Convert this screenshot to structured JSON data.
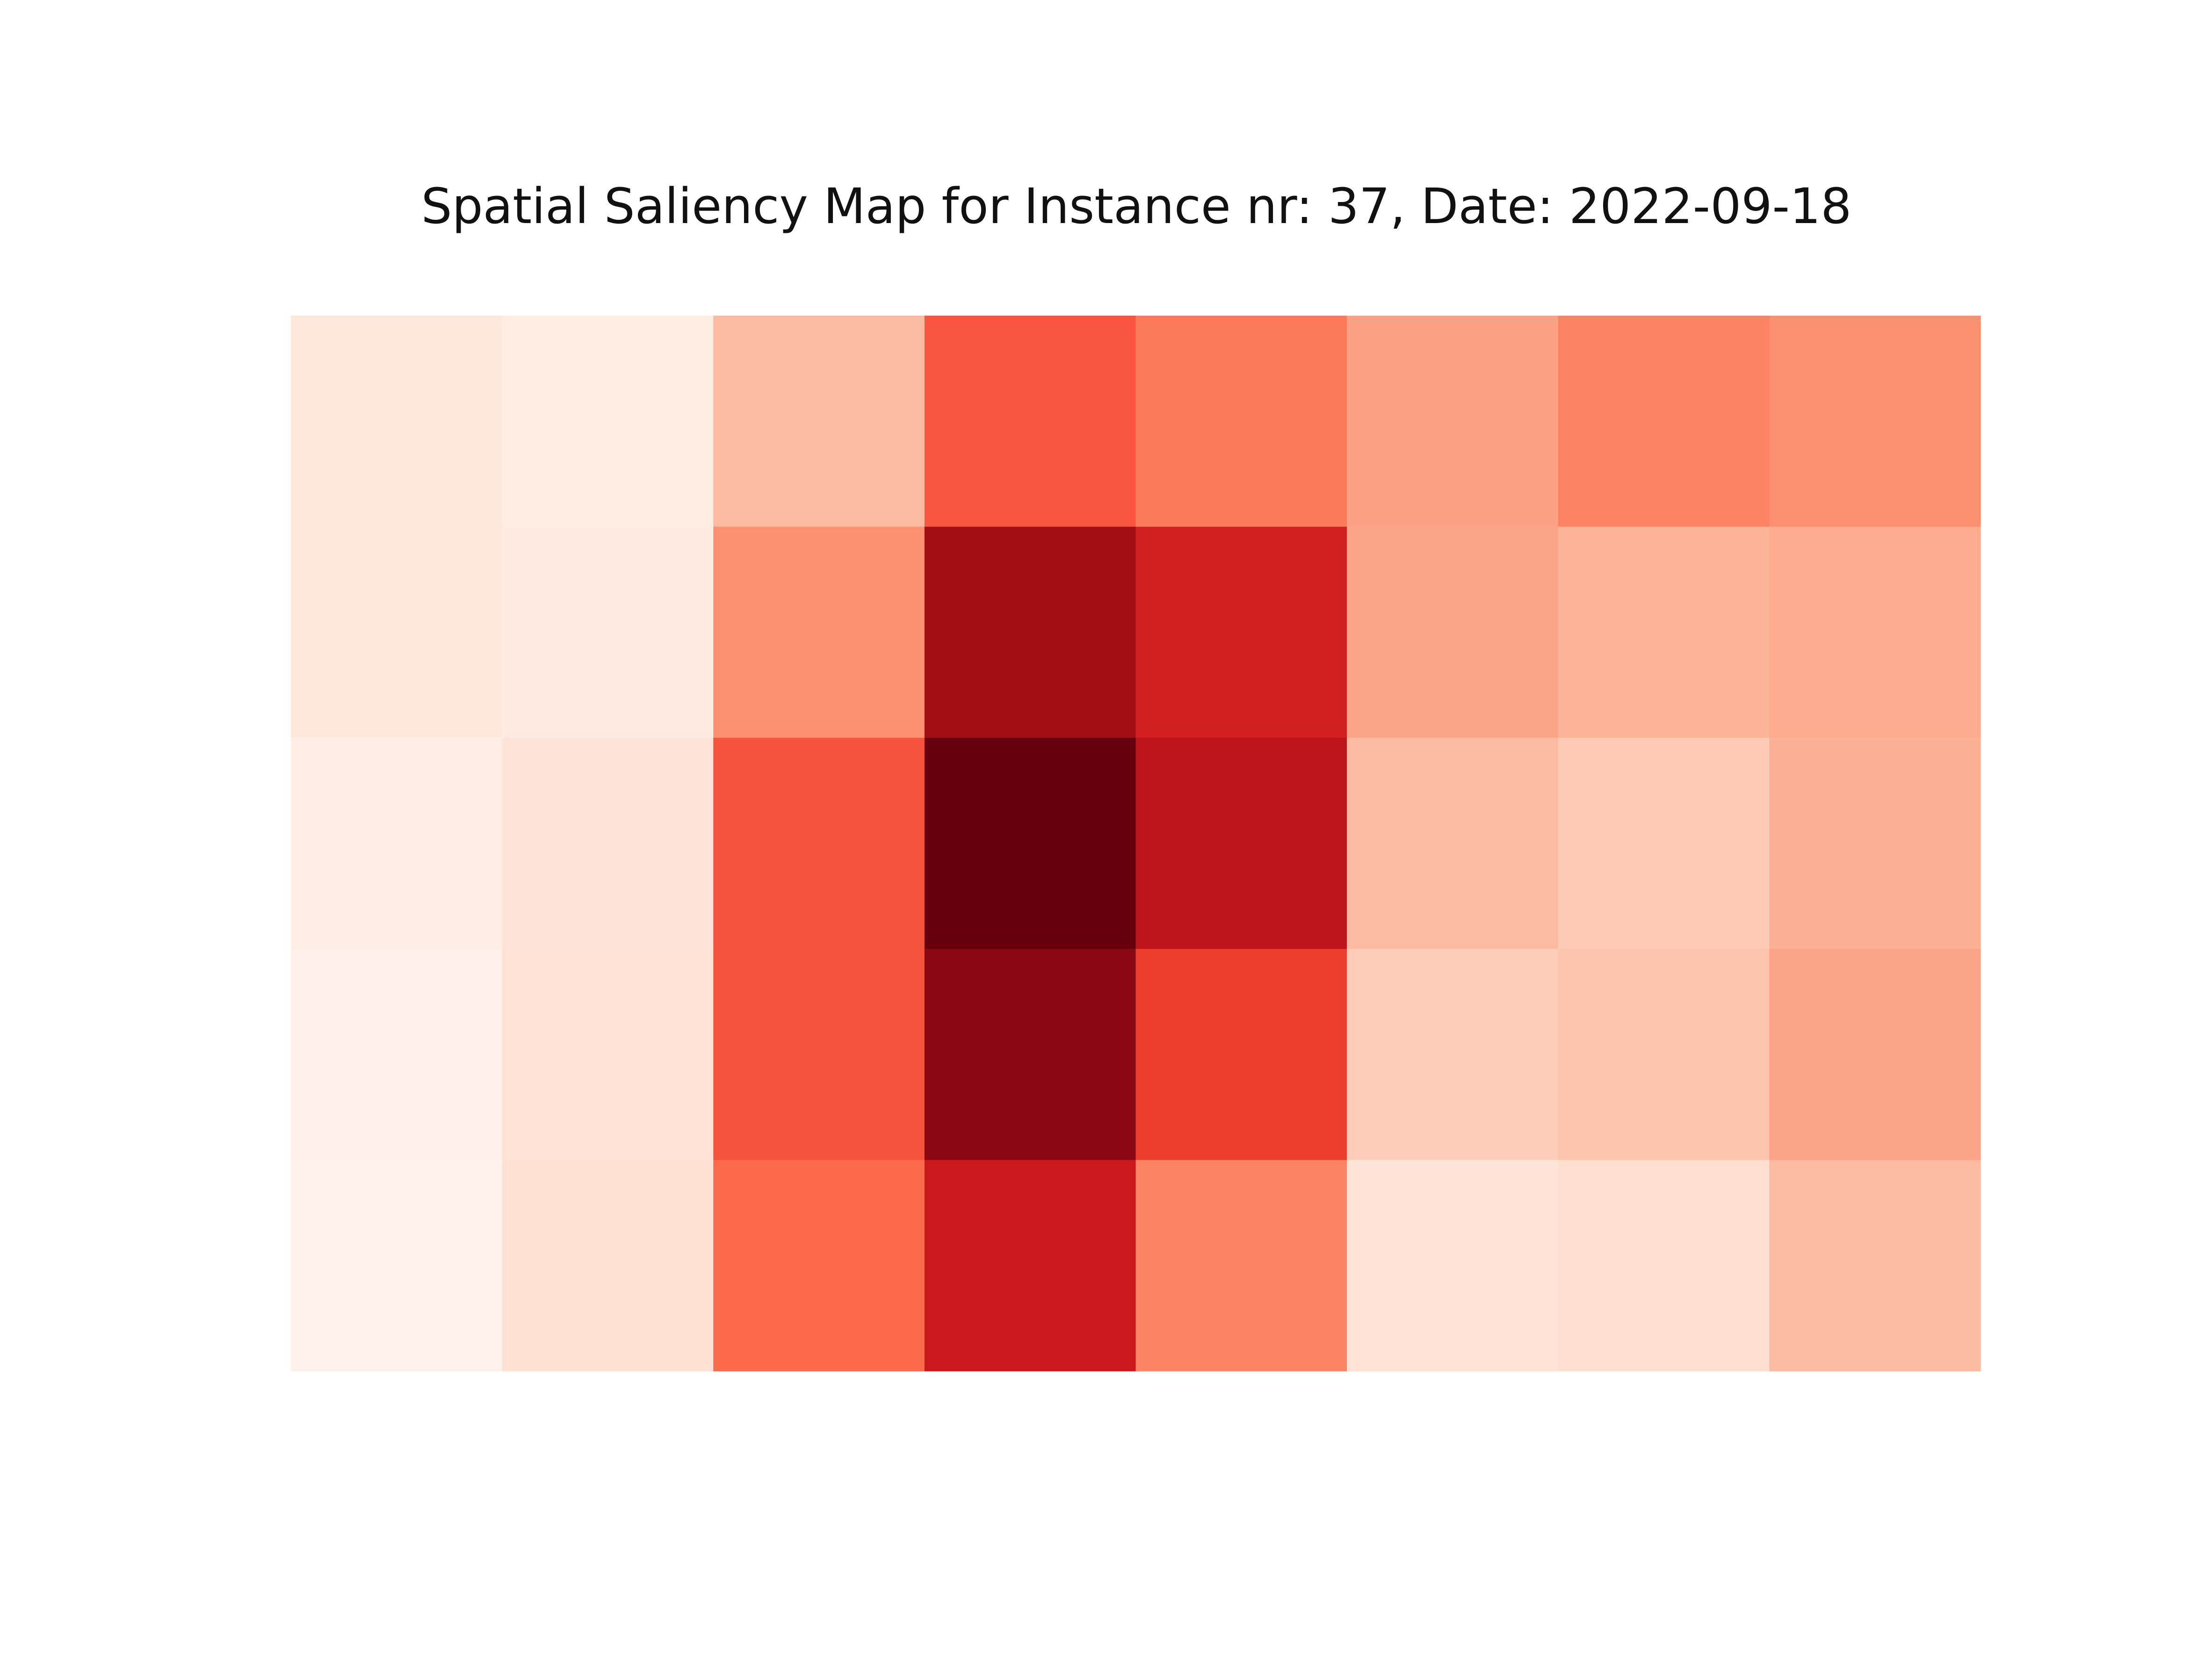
{
  "chart_data": {
    "type": "heatmap",
    "title": "Spatial Saliency Map for Instance nr: 37, Date: 2022-09-18",
    "colormap": "Reds",
    "rows": 5,
    "cols": 8,
    "axes_visible": false,
    "grid": false,
    "values": [
      [
        0.08,
        0.05,
        0.25,
        0.55,
        0.45,
        0.33,
        0.42,
        0.38
      ],
      [
        0.08,
        0.06,
        0.38,
        0.88,
        0.72,
        0.32,
        0.27,
        0.3
      ],
      [
        0.04,
        0.1,
        0.56,
        1.0,
        0.8,
        0.25,
        0.2,
        0.28
      ],
      [
        0.03,
        0.11,
        0.56,
        0.93,
        0.62,
        0.19,
        0.22,
        0.32
      ],
      [
        0.02,
        0.12,
        0.5,
        0.75,
        0.42,
        0.11,
        0.13,
        0.25
      ]
    ]
  }
}
